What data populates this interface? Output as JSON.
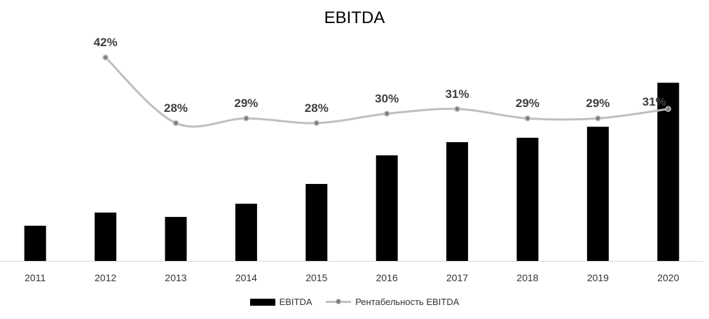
{
  "chart_data": {
    "type": "bar",
    "title": "EBITDA",
    "categories": [
      "2011",
      "2012",
      "2013",
      "2014",
      "2015",
      "2016",
      "2017",
      "2018",
      "2019",
      "2020"
    ],
    "series": [
      {
        "name": "EBITDA",
        "type": "bar",
        "values": [
          16,
          22,
          20,
          26,
          35,
          48,
          54,
          56,
          61,
          81
        ],
        "color": "#000000"
      },
      {
        "name": "Рентабельность EBITDA",
        "type": "line",
        "values": [
          null,
          42,
          28,
          29,
          28,
          30,
          31,
          29,
          29,
          31
        ],
        "labels": [
          "",
          "42%",
          "28%",
          "29%",
          "28%",
          "30%",
          "31%",
          "29%",
          "29%",
          "31%"
        ],
        "color": "#bfbfbf",
        "marker_color": "#7f7f7f"
      }
    ],
    "xlabel": "",
    "ylabel": "",
    "grid": false,
    "legend": "bottom"
  }
}
